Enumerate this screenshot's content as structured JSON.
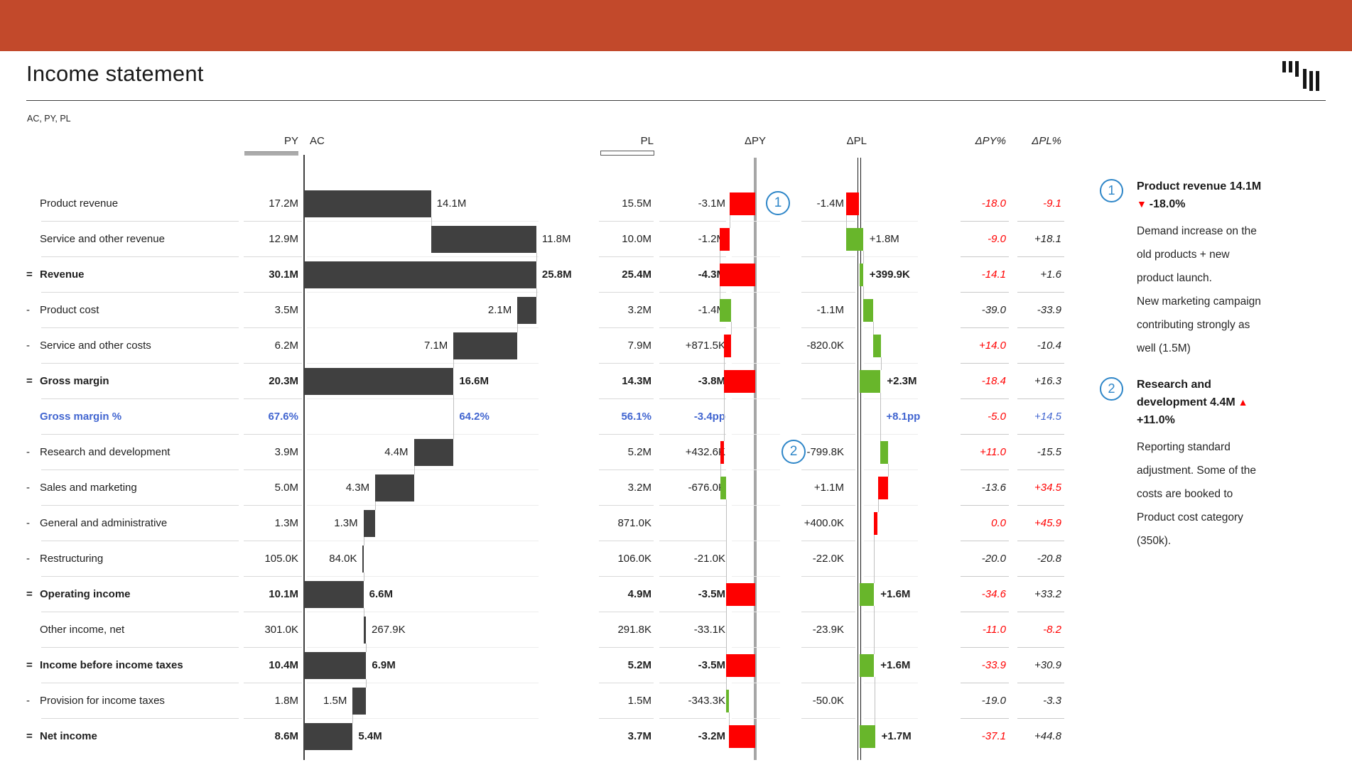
{
  "title": "Income statement",
  "subtitle": "AC, PY, PL",
  "logo": "zebra-bars-icon",
  "colors": {
    "band": "#C2492B",
    "bar_dark": "#404040",
    "red": "#FE0000",
    "green": "#68B62B",
    "blue": "#4165D0",
    "red_text": "#FF0000",
    "marker_blue": "#2E86C8"
  },
  "columns": {
    "py": "PY",
    "ac": "AC",
    "pl": "PL",
    "dpy": "ΔPY",
    "dpl": "ΔPL",
    "dpy_pct": "ΔPY%",
    "dpl_pct": "ΔPL%"
  },
  "chart_data": {
    "type": "bar",
    "subtype": "waterfall-variance-table",
    "unit": "M",
    "ac_axis_range": [
      0,
      25.8
    ],
    "rows": [
      {
        "label": "Product revenue",
        "prefix": "",
        "bold": false,
        "py": "17.2M",
        "pl": "15.5M",
        "ac": {
          "from": 0,
          "to": 14.1,
          "label": "14.1M",
          "side": "right"
        },
        "dpy": {
          "from": -3.1,
          "to": 0,
          "color": "red",
          "label": "-3.1M"
        },
        "dpl": {
          "from": -1.4,
          "to": 0,
          "color": "red",
          "label": "-1.4M",
          "side": "left"
        },
        "dpy_pct": {
          "t": "-18.0",
          "red": true
        },
        "dpl_pct": {
          "t": "-9.1",
          "red": true
        },
        "marker": "1"
      },
      {
        "label": "Service and other revenue",
        "prefix": "",
        "py": "12.9M",
        "pl": "10.0M",
        "ac": {
          "from": 14.1,
          "to": 25.8,
          "label": "11.8M",
          "side": "right"
        },
        "dpy": {
          "from": -4.3,
          "to": -3.1,
          "color": "red",
          "label": "-1.2M"
        },
        "dpl": {
          "from": -1.4,
          "to": 0.4,
          "color": "green",
          "label": "+1.8M",
          "side": "right"
        },
        "dpy_pct": {
          "t": "-9.0",
          "red": true
        },
        "dpl_pct": {
          "t": "+18.1"
        }
      },
      {
        "label": "Revenue",
        "prefix": "=",
        "bold": true,
        "py": "30.1M",
        "pl": "25.4M",
        "ac": {
          "from": 0,
          "to": 25.8,
          "label": "25.8M",
          "side": "right"
        },
        "dpy": {
          "from": -4.3,
          "to": 0,
          "color": "red",
          "label": "-4.3M"
        },
        "dpl": {
          "from": 0,
          "to": 0.4,
          "color": "green",
          "label": "+399.9K",
          "side": "right"
        },
        "dpy_pct": {
          "t": "-14.1",
          "red": true
        },
        "dpl_pct": {
          "t": "+1.6"
        }
      },
      {
        "label": "Product cost",
        "prefix": "-",
        "py": "3.5M",
        "pl": "3.2M",
        "ac": {
          "from": 23.7,
          "to": 25.8,
          "label": "2.1M",
          "side": "left"
        },
        "dpy": {
          "from": -4.3,
          "to": -2.9,
          "color": "green",
          "label": "-1.4M"
        },
        "dpl": {
          "from": 0.4,
          "to": 1.5,
          "color": "green",
          "label": "-1.1M",
          "side": "left"
        },
        "dpy_pct": {
          "t": "-39.0"
        },
        "dpl_pct": {
          "t": "-33.9"
        }
      },
      {
        "label": "Service and other costs",
        "prefix": "-",
        "py": "6.2M",
        "pl": "7.9M",
        "ac": {
          "from": 16.6,
          "to": 23.7,
          "label": "7.1M",
          "side": "left"
        },
        "dpy": {
          "from": -3.77,
          "to": -2.9,
          "color": "red",
          "label": "+871.5K"
        },
        "dpl": {
          "from": 1.5,
          "to": 2.32,
          "color": "green",
          "label": "-820.0K",
          "side": "left"
        },
        "dpy_pct": {
          "t": "+14.0",
          "red": true
        },
        "dpl_pct": {
          "t": "-10.4"
        }
      },
      {
        "label": "Gross margin",
        "prefix": "=",
        "bold": true,
        "py": "20.3M",
        "pl": "14.3M",
        "ac": {
          "from": 0,
          "to": 16.6,
          "label": "16.6M",
          "side": "right"
        },
        "dpy": {
          "from": -3.8,
          "to": 0,
          "color": "red",
          "label": "-3.8M"
        },
        "dpl": {
          "from": 0,
          "to": 2.3,
          "color": "green",
          "label": "+2.3M",
          "side": "right"
        },
        "dpy_pct": {
          "t": "-18.4",
          "red": true
        },
        "dpl_pct": {
          "t": "+16.3"
        }
      },
      {
        "label": "Gross margin %",
        "prefix": "",
        "bold": true,
        "blue": true,
        "py": "67.6%",
        "pl": "56.1%",
        "ac": {
          "text": true,
          "at": 16.6,
          "label": "64.2%",
          "side": "right"
        },
        "dpy": {
          "text": true,
          "label": "-3.4pp"
        },
        "dpl": {
          "text": true,
          "at": 2.3,
          "label": "+8.1pp",
          "side": "right"
        },
        "dpy_pct": {
          "t": "-5.0",
          "red": true
        },
        "dpl_pct": {
          "t": "+14.5",
          "blue": true
        }
      },
      {
        "label": "Research and development",
        "prefix": "-",
        "py": "3.9M",
        "pl": "5.2M",
        "ac": {
          "from": 12.2,
          "to": 16.6,
          "label": "4.4M",
          "side": "left"
        },
        "dpy": {
          "from": -4.23,
          "to": -3.8,
          "color": "red",
          "label": "+432.6K"
        },
        "dpl": {
          "from": 2.3,
          "to": 3.1,
          "color": "green",
          "label": "-799.8K",
          "side": "left"
        },
        "dpy_pct": {
          "t": "+11.0",
          "red": true
        },
        "dpl_pct": {
          "t": "-15.5"
        },
        "marker": "2"
      },
      {
        "label": "Sales and marketing",
        "prefix": "-",
        "py": "5.0M",
        "pl": "3.2M",
        "ac": {
          "from": 7.9,
          "to": 12.2,
          "label": "4.3M",
          "side": "left"
        },
        "dpy": {
          "from": -4.23,
          "to": -3.56,
          "color": "green",
          "label": "-676.0K"
        },
        "dpl": {
          "from": 2.0,
          "to": 3.1,
          "color": "red",
          "label": "+1.1M",
          "side": "left"
        },
        "dpy_pct": {
          "t": "-13.6"
        },
        "dpl_pct": {
          "t": "+34.5",
          "red": true
        }
      },
      {
        "label": "General and administrative",
        "prefix": "-",
        "py": "1.3M",
        "pl": "871.0K",
        "ac": {
          "from": 6.6,
          "to": 7.9,
          "label": "1.3M",
          "side": "left"
        },
        "dpy": null,
        "dpl": {
          "from": 1.6,
          "to": 2.0,
          "color": "red",
          "label": "+400.0K",
          "side": "left"
        },
        "dpy_pct": {
          "t": "0.0",
          "red": true
        },
        "dpl_pct": {
          "t": "+45.9",
          "red": true
        }
      },
      {
        "label": "Restructuring",
        "prefix": "-",
        "py": "105.0K",
        "pl": "106.0K",
        "ac": {
          "from": 6.51,
          "to": 6.6,
          "label": "84.0K",
          "side": "left"
        },
        "dpy": {
          "from": -3.52,
          "to": -3.5,
          "color": "green",
          "label": "-21.0K"
        },
        "dpl": {
          "from": 1.6,
          "to": 1.62,
          "color": "green",
          "label": "-22.0K",
          "side": "left"
        },
        "dpy_pct": {
          "t": "-20.0"
        },
        "dpl_pct": {
          "t": "-20.8"
        }
      },
      {
        "label": "Operating income",
        "prefix": "=",
        "bold": true,
        "py": "10.1M",
        "pl": "4.9M",
        "ac": {
          "from": 0,
          "to": 6.6,
          "label": "6.6M",
          "side": "right"
        },
        "dpy": {
          "from": -3.5,
          "to": 0,
          "color": "red",
          "label": "-3.5M"
        },
        "dpl": {
          "from": 0,
          "to": 1.6,
          "color": "green",
          "label": "+1.6M",
          "side": "right"
        },
        "dpy_pct": {
          "t": "-34.6",
          "red": true
        },
        "dpl_pct": {
          "t": "+33.2"
        }
      },
      {
        "label": "Other income, net",
        "prefix": "",
        "py": "301.0K",
        "pl": "291.8K",
        "ac": {
          "from": 6.6,
          "to": 6.87,
          "label": "267.9K",
          "side": "right"
        },
        "dpy": {
          "from": -3.53,
          "to": -3.5,
          "color": "red",
          "label": "-33.1K"
        },
        "dpl": {
          "from": -0.02,
          "to": 0,
          "color": "red",
          "label": "-23.9K",
          "side": "left"
        },
        "dpy_pct": {
          "t": "-11.0",
          "red": true
        },
        "dpl_pct": {
          "t": "-8.2",
          "red": true
        }
      },
      {
        "label": "Income before income taxes",
        "prefix": "=",
        "bold": true,
        "py": "10.4M",
        "pl": "5.2M",
        "ac": {
          "from": 0,
          "to": 6.9,
          "label": "6.9M",
          "side": "right"
        },
        "dpy": {
          "from": -3.5,
          "to": 0,
          "color": "red",
          "label": "-3.5M"
        },
        "dpl": {
          "from": 0,
          "to": 1.6,
          "color": "green",
          "label": "+1.6M",
          "side": "right"
        },
        "dpy_pct": {
          "t": "-33.9",
          "red": true
        },
        "dpl_pct": {
          "t": "+30.9"
        }
      },
      {
        "label": "Provision for income taxes",
        "prefix": "-",
        "py": "1.8M",
        "pl": "1.5M",
        "ac": {
          "from": 5.4,
          "to": 6.9,
          "label": "1.5M",
          "side": "left"
        },
        "dpy": {
          "from": -3.5,
          "to": -3.2,
          "color": "green",
          "label": "-343.3K"
        },
        "dpl": {
          "from": -0.004,
          "to": 0,
          "color": "green",
          "label": "-50.0K",
          "side": "left"
        },
        "dpy_pct": {
          "t": "-19.0"
        },
        "dpl_pct": {
          "t": "-3.3"
        }
      },
      {
        "label": "Net income",
        "prefix": "=",
        "bold": true,
        "py": "8.6M",
        "pl": "3.7M",
        "ac": {
          "from": 0,
          "to": 5.4,
          "label": "5.4M",
          "side": "right"
        },
        "dpy": {
          "from": -3.2,
          "to": 0,
          "color": "red",
          "label": "-3.2M"
        },
        "dpl": {
          "from": 0,
          "to": 1.7,
          "color": "green",
          "label": "+1.7M",
          "side": "right"
        },
        "dpy_pct": {
          "t": "-37.1",
          "red": true
        },
        "dpl_pct": {
          "t": "+44.8"
        }
      }
    ]
  },
  "annotations": [
    {
      "num": "1",
      "title_lines": [
        {
          "text": "Product revenue 14.1M"
        },
        {
          "text": "-18.0%",
          "arrow": "▼"
        }
      ],
      "body_lines": [
        "Demand increase on the",
        "old products + new",
        "product launch.",
        "New marketing campaign",
        "contributing strongly as",
        "well (1.5M)"
      ]
    },
    {
      "num": "2",
      "title_lines": [
        {
          "text": "Research and"
        },
        {
          "text": "development 4.4M",
          "arrow_after": "▲"
        },
        {
          "text": "+11.0%"
        }
      ],
      "body_lines": [
        "Reporting standard",
        "adjustment. Some of the",
        "costs are booked to",
        "Product cost category",
        "(350k)."
      ]
    }
  ]
}
